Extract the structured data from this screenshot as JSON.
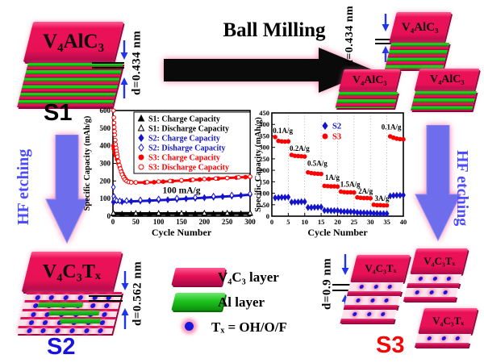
{
  "process": {
    "ball_milling": "Ball Milling",
    "hf_etching_left": "HF etching",
    "hf_etching_right": "HF etching"
  },
  "structures": {
    "s1": {
      "label": "S1",
      "formula": "V₄AlC₃",
      "d_spacing": "d=0.434 nm"
    },
    "milling_products": {
      "d_spacing": "d=0.434 nm",
      "formulas": [
        "V₄AlC₃",
        "V₄AlC₃",
        "V₄AlC₃"
      ]
    },
    "s2": {
      "label": "S2",
      "formula": "V₄C₃Tₓ",
      "d_spacing": "d=0.562 nm"
    },
    "s3": {
      "label": "S3",
      "formulas": [
        "V₄C₃Tₓ",
        "V₄C₃Tₓ",
        "V₄C₃Tₓ"
      ],
      "d_spacing": "d=0.9 nm"
    }
  },
  "legend": {
    "items": [
      {
        "swatch": "v4c3-layer",
        "label": "V₄C₃ layer"
      },
      {
        "swatch": "al-layer",
        "label": "Al  layer"
      },
      {
        "swatch": "tx-dot",
        "label": "Tₓ = OH/O/F"
      }
    ]
  },
  "colors": {
    "v4c3_pink": "#e81156",
    "al_green": "#19cf19",
    "tx_blue": "#1717dd",
    "hf_text_blue": "#4d4dff",
    "s2_label_blue": "#1a12e0",
    "s3_label_red": "#f50505"
  },
  "chart_data": [
    {
      "type": "scatter",
      "xlabel": "Cycle Number",
      "ylabel": "Specific Capacity (mAh/g)",
      "xlim": [
        0,
        300
      ],
      "ylim": [
        0,
        600
      ],
      "xticks": [
        0,
        50,
        100,
        150,
        200,
        250,
        300
      ],
      "yticks": [
        0,
        100,
        200,
        300,
        400,
        500,
        600
      ],
      "annotation": "100 mA/g",
      "annotation_xy": [
        150,
        130
      ],
      "legend_position": "upper-center-boxed",
      "series": [
        {
          "name": "S1: Charge Capacity",
          "color": "#000000",
          "marker": "triangle",
          "filled": true,
          "line": true,
          "points": [
            [
              1,
              12
            ],
            [
              20,
              12
            ],
            [
              40,
              12
            ],
            [
              60,
              12
            ],
            [
              80,
              12
            ],
            [
              100,
              12
            ],
            [
              120,
              13
            ],
            [
              140,
              13
            ],
            [
              160,
              13
            ],
            [
              180,
              13
            ],
            [
              200,
              13
            ],
            [
              220,
              13
            ],
            [
              240,
              14
            ],
            [
              260,
              14
            ],
            [
              280,
              14
            ],
            [
              300,
              14
            ]
          ]
        },
        {
          "name": "S1: Discharge Capacity",
          "color": "#000000",
          "marker": "triangle",
          "filled": false,
          "line": true,
          "points": [
            [
              1,
              17
            ],
            [
              50,
              16
            ],
            [
              100,
              16
            ],
            [
              150,
              16
            ],
            [
              200,
              17
            ],
            [
              250,
              17
            ],
            [
              300,
              18
            ]
          ]
        },
        {
          "name": "S2: Charge Capacity",
          "color": "#1414cc",
          "marker": "diamond",
          "filled": true,
          "line": true,
          "points": [
            [
              1,
              80
            ],
            [
              20,
              82
            ],
            [
              40,
              84
            ],
            [
              60,
              86
            ],
            [
              80,
              88
            ],
            [
              100,
              91
            ],
            [
              120,
              93
            ],
            [
              140,
              96
            ],
            [
              160,
              99
            ],
            [
              180,
              102
            ],
            [
              200,
              105
            ],
            [
              220,
              108
            ],
            [
              240,
              111
            ],
            [
              260,
              114
            ],
            [
              280,
              118
            ],
            [
              300,
              122
            ]
          ]
        },
        {
          "name": "S2: Disharge Capacity",
          "color": "#1414cc",
          "marker": "diamond",
          "filled": false,
          "points": [
            [
              1,
              165
            ],
            [
              2,
              112
            ],
            [
              4,
              95
            ],
            [
              8,
              89
            ],
            [
              15,
              87
            ],
            [
              30,
              88
            ],
            [
              60,
              92
            ],
            [
              100,
              97
            ],
            [
              140,
              102
            ],
            [
              180,
              107
            ],
            [
              220,
              113
            ],
            [
              260,
              119
            ],
            [
              300,
              127
            ]
          ]
        },
        {
          "name": "S3: Charge Capacity",
          "color": "#ff0000",
          "marker": "circle",
          "filled": true,
          "line": true,
          "points": [
            [
              1,
              400
            ],
            [
              2,
              383
            ],
            [
              4,
              362
            ],
            [
              6,
              345
            ],
            [
              9,
              323
            ],
            [
              12,
              300
            ],
            [
              15,
              278
            ],
            [
              18,
              258
            ],
            [
              21,
              240
            ],
            [
              24,
              225
            ],
            [
              27,
              212
            ],
            [
              30,
              203
            ],
            [
              35,
              196
            ],
            [
              40,
              193
            ],
            [
              50,
              191
            ],
            [
              70,
              191
            ],
            [
              90,
              193
            ],
            [
              110,
              196
            ],
            [
              130,
              199
            ],
            [
              150,
              202
            ],
            [
              170,
              205
            ],
            [
              190,
              208
            ],
            [
              210,
              211
            ],
            [
              230,
              214
            ],
            [
              250,
              217
            ],
            [
              270,
              219
            ],
            [
              290,
              222
            ],
            [
              300,
              223
            ]
          ]
        },
        {
          "name": "S3: Discharge Capacity",
          "color": "#ff0000",
          "marker": "circle",
          "filled": false,
          "points": [
            [
              1,
              600
            ],
            [
              2,
              560
            ],
            [
              2.5,
              530
            ],
            [
              3,
              505
            ],
            [
              3.5,
              482
            ],
            [
              4,
              462
            ],
            [
              5,
              432
            ],
            [
              6,
              408
            ],
            [
              7,
              388
            ],
            [
              8,
              370
            ],
            [
              9,
              353
            ],
            [
              10,
              338
            ],
            [
              12,
              312
            ],
            [
              14,
              290
            ],
            [
              16,
              270
            ],
            [
              18,
              252
            ],
            [
              20,
              237
            ],
            [
              23,
              220
            ],
            [
              26,
              208
            ],
            [
              30,
              199
            ],
            [
              35,
              194
            ],
            [
              40,
              192
            ],
            [
              50,
              192
            ],
            [
              75,
              193
            ],
            [
              100,
              197
            ],
            [
              125,
              200
            ],
            [
              150,
              204
            ],
            [
              175,
              207
            ],
            [
              200,
              211
            ],
            [
              225,
              214
            ],
            [
              250,
              217
            ],
            [
              275,
              221
            ],
            [
              300,
              225
            ]
          ]
        }
      ]
    },
    {
      "type": "scatter",
      "xlabel": "Cycle Number",
      "ylabel": "Specific Capacity (mAh/g)",
      "xlim": [
        0,
        40
      ],
      "ylim": [
        0,
        450
      ],
      "xticks": [
        0,
        5,
        10,
        15,
        20,
        25,
        30,
        35,
        40
      ],
      "yticks": [
        0,
        50,
        100,
        150,
        200,
        250,
        300,
        350,
        400,
        450
      ],
      "grid": "vertical-dotted",
      "legend_position": "upper-center",
      "rate_labels": [
        {
          "text": "0.1A/g",
          "x": 0.3,
          "y": 362
        },
        {
          "text": "0.2A/g",
          "x": 5.4,
          "y": 285
        },
        {
          "text": "0.5A/g",
          "x": 10.8,
          "y": 220
        },
        {
          "text": "1A/g",
          "x": 16.2,
          "y": 158
        },
        {
          "text": "1.5A/g",
          "x": 20.8,
          "y": 128
        },
        {
          "text": "2A/g",
          "x": 26.3,
          "y": 98
        },
        {
          "text": "3A/g",
          "x": 31.3,
          "y": 66
        },
        {
          "text": "0.1A/g",
          "x": 33.3,
          "y": 378
        }
      ],
      "series": [
        {
          "name": "S2",
          "color": "#1414cc",
          "marker": "diamond",
          "filled": true,
          "values": [
            80,
            81,
            82,
            82,
            83,
            61,
            62,
            62,
            63,
            63,
            38,
            38,
            39,
            39,
            40,
            25,
            25,
            24,
            24,
            24,
            21,
            20,
            20,
            19,
            19,
            16,
            15,
            15,
            14,
            14,
            12,
            12,
            11,
            11,
            11,
            88,
            90,
            91,
            91,
            92
          ]
        },
        {
          "name": "S3",
          "color": "#ff0000",
          "marker": "circle",
          "filled": true,
          "values": [
            345,
            328,
            326,
            325,
            326,
            267,
            263,
            262,
            261,
            260,
            191,
            188,
            186,
            185,
            184,
            132,
            131,
            130,
            130,
            129,
            107,
            105,
            104,
            104,
            103,
            82,
            80,
            79,
            79,
            78,
            50,
            48,
            48,
            47,
            47,
            348,
            342,
            338,
            336,
            335
          ]
        }
      ]
    }
  ]
}
